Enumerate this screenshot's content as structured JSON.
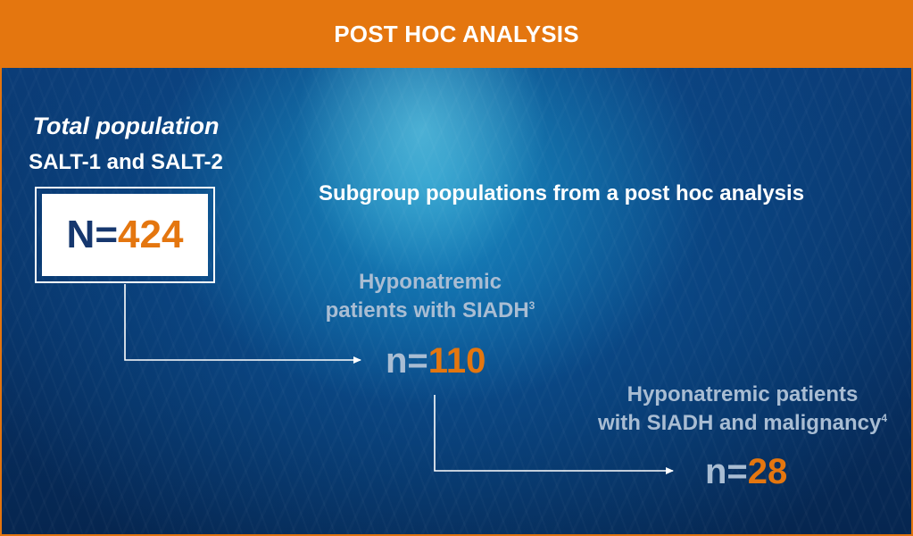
{
  "banner": {
    "title": "POST HOC ANALYSIS"
  },
  "total": {
    "title": "Total population",
    "subtitle": "SALT-1 and SALT-2",
    "n_prefix": "N=",
    "n_value": "424"
  },
  "subgroup": {
    "heading": "Subgroup populations from a post hoc analysis"
  },
  "group1": {
    "line1": "Hyponatremic",
    "line2": "patients with SIADH",
    "ref": "3",
    "n_prefix": "n=",
    "n_value": "110"
  },
  "group2": {
    "line1": "Hyponatremic patients",
    "line2": "with SIADH and malignancy",
    "ref": "4",
    "n_prefix": "n=",
    "n_value": "28"
  },
  "colors": {
    "accent_orange": "#e4760f",
    "navy": "#16376e",
    "label_gray_blue": "#a9bdd3",
    "background_blue": "#0b3d78"
  }
}
